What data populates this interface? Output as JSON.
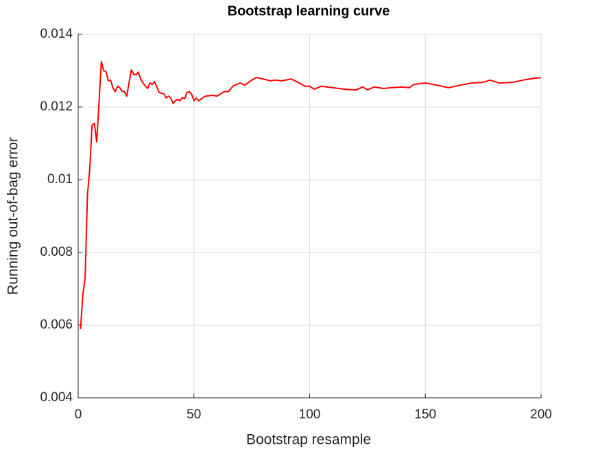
{
  "chart_data": {
    "type": "line",
    "title": "Bootstrap learning curve",
    "x_label": "Bootstrap resample",
    "y_label": "Running out-of-bag error",
    "x": [
      1,
      2,
      3,
      4,
      5,
      6,
      7,
      8,
      9,
      10,
      11,
      12,
      13,
      14,
      15,
      16,
      17,
      18,
      19,
      20,
      21,
      22,
      23,
      24,
      25,
      26,
      27,
      28,
      29,
      30,
      31,
      32,
      33,
      34,
      35,
      36,
      37,
      38,
      39,
      40,
      41,
      42,
      43,
      44,
      45,
      46,
      47,
      48,
      49,
      50,
      51,
      52,
      55,
      58,
      60,
      63,
      65,
      67,
      70,
      72,
      75,
      77,
      80,
      83,
      85,
      88,
      92,
      95,
      98,
      100,
      102,
      105,
      110,
      115,
      120,
      123,
      125,
      128,
      132,
      135,
      140,
      143,
      145,
      150,
      155,
      160,
      165,
      170,
      175,
      178,
      182,
      188,
      193,
      197,
      200
    ],
    "series": [
      {
        "color": "#ff0000",
        "values": [
          0.00589,
          0.00683,
          0.0073,
          0.00957,
          0.0103,
          0.0115,
          0.01155,
          0.01104,
          0.01211,
          0.01325,
          0.013,
          0.01298,
          0.01272,
          0.01274,
          0.01253,
          0.01242,
          0.01257,
          0.01253,
          0.01243,
          0.01242,
          0.0123,
          0.01268,
          0.01302,
          0.0129,
          0.01289,
          0.01296,
          0.01277,
          0.01266,
          0.01258,
          0.01251,
          0.01266,
          0.01262,
          0.0127,
          0.01255,
          0.0124,
          0.01238,
          0.01236,
          0.01225,
          0.0123,
          0.01225,
          0.0121,
          0.01217,
          0.01221,
          0.01217,
          0.01226,
          0.01223,
          0.0124,
          0.01242,
          0.01236,
          0.01217,
          0.01225,
          0.01217,
          0.0123,
          0.01232,
          0.0123,
          0.01242,
          0.01243,
          0.01258,
          0.01266,
          0.0126,
          0.01274,
          0.01281,
          0.01277,
          0.01272,
          0.01274,
          0.01272,
          0.01277,
          0.01268,
          0.01257,
          0.01257,
          0.01249,
          0.01257,
          0.01253,
          0.01249,
          0.01247,
          0.01255,
          0.01247,
          0.01255,
          0.01251,
          0.01253,
          0.01255,
          0.01253,
          0.01262,
          0.01266,
          0.0126,
          0.01253,
          0.0126,
          0.01266,
          0.01268,
          0.01274,
          0.01266,
          0.01268,
          0.01275,
          0.01279,
          0.01281
        ]
      }
    ],
    "xlim": [
      0,
      200
    ],
    "xticks": [
      0,
      50,
      100,
      150,
      200
    ],
    "ylim": [
      0.004,
      0.014
    ],
    "yticks": [
      0.004,
      0.006,
      0.008,
      0.01,
      0.012,
      0.014
    ],
    "grid": true
  }
}
